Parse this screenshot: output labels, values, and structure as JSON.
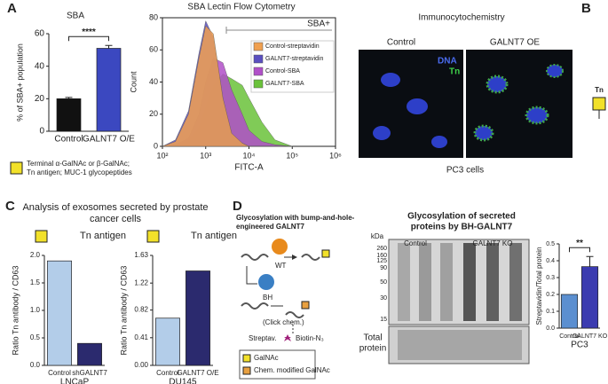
{
  "panels": {
    "labels": [
      "A",
      "B",
      "C",
      "D"
    ],
    "a_note_lines": [
      "Terminal α-GalNAc or β-GalNAc;",
      "Tn antigen; MUC-1 glycopeptides"
    ],
    "b": {
      "title": "Immunocytochemistry",
      "images": [
        "Control",
        "GALNT7 OE"
      ],
      "stains": [
        "DNA",
        "Tn"
      ],
      "caption": "PC3 cells",
      "glycan": "Tn"
    },
    "c": {
      "title_lines": [
        "Analysis of exosomes secreted by prostate",
        "cancer cells"
      ]
    },
    "d": {
      "title_lines": [
        "Glycosylation with bump-and-hole-",
        "engineered GALNT7"
      ],
      "enzymes": [
        "WT",
        "BH"
      ],
      "click": "(Click chem.)",
      "streptavidin": "Streptav.",
      "biotin": "Biotin-N₃",
      "key": [
        "GalNAc",
        "Chem. modified GalNAc"
      ],
      "blot": {
        "title_lines": [
          "Glycosylation of secreted",
          "proteins by BH-GALNT7"
        ],
        "unit": "kDa",
        "markers": [
          260,
          160,
          125,
          90,
          50,
          30,
          15
        ],
        "groups": [
          "Control",
          "GALNT7 KO"
        ],
        "total": [
          "Total",
          "protein"
        ]
      }
    }
  },
  "chart_data": [
    {
      "type": "bar",
      "title": "SBA",
      "ylabel": "% of SBA+ population",
      "categories": [
        "Control",
        "GALNT7 O/E"
      ],
      "values": [
        20,
        51
      ],
      "errors": [
        0.8,
        1.8
      ],
      "colors": [
        "#111111",
        "#3b48c0"
      ],
      "ylim": [
        0,
        60
      ],
      "yticks": [
        0,
        20,
        40,
        60
      ],
      "significance": "****"
    },
    {
      "type": "area",
      "title": "SBA Lectin Flow Cytometry",
      "xlabel": "FITC-A",
      "ylabel": "Count",
      "log_x": true,
      "gate_label": "SBA+",
      "xlim": [
        100,
        1000000
      ],
      "xticks": [
        {
          "value": 100,
          "label": "10²"
        },
        {
          "value": 1000,
          "label": "10³"
        },
        {
          "value": 10000,
          "label": "10⁴"
        },
        {
          "value": 100000,
          "label": "10⁵"
        },
        {
          "value": 1000000,
          "label": "10⁶"
        }
      ],
      "ylim": [
        0,
        80
      ],
      "yticks": [
        0,
        20,
        40,
        60,
        80
      ],
      "series": [
        {
          "name": "Control-streptavidin",
          "color": "#f0a050",
          "x": [
            100,
            200,
            400,
            700,
            1000,
            1500,
            2500,
            4000,
            7000,
            10000,
            20000,
            40000,
            100000
          ],
          "values": [
            0,
            3,
            20,
            55,
            75,
            70,
            30,
            8,
            2,
            0,
            0,
            0,
            0
          ]
        },
        {
          "name": "GALNT7-streptavidin",
          "color": "#5a4fc0",
          "x": [
            100,
            200,
            400,
            700,
            1000,
            1500,
            2500,
            4000,
            7000,
            10000,
            20000,
            40000,
            100000
          ],
          "values": [
            0,
            4,
            22,
            58,
            78,
            68,
            28,
            7,
            2,
            0,
            0,
            0,
            0
          ]
        },
        {
          "name": "Control-SBA",
          "color": "#b04fc8",
          "x": [
            100,
            200,
            400,
            700,
            1000,
            1500,
            2500,
            4000,
            7000,
            10000,
            20000,
            40000,
            100000
          ],
          "values": [
            0,
            1,
            5,
            20,
            40,
            55,
            52,
            35,
            20,
            10,
            3,
            1,
            0
          ]
        },
        {
          "name": "GALNT7-SBA",
          "color": "#6ac23a",
          "x": [
            100,
            200,
            400,
            700,
            1000,
            1500,
            2500,
            4000,
            7000,
            10000,
            20000,
            40000,
            100000
          ],
          "values": [
            0,
            1,
            4,
            12,
            25,
            38,
            45,
            42,
            38,
            30,
            15,
            4,
            0
          ]
        }
      ]
    },
    {
      "type": "bar",
      "title": "Tn antigen",
      "xlabel": "LNCaP",
      "ylabel": "Ratio Tn antibody / CD63",
      "categories": [
        "Control",
        "shGALNT7"
      ],
      "values": [
        1.9,
        0.4
      ],
      "colors": [
        "#b3cde9",
        "#2b2a6e"
      ],
      "ylim": [
        0,
        2
      ],
      "yticks": [
        {
          "value": 0,
          "label": "0.0"
        },
        {
          "value": 0.5,
          "label": "0.5"
        },
        {
          "value": 1,
          "label": "1.0"
        },
        {
          "value": 1.5,
          "label": "1.5"
        },
        {
          "value": 2,
          "label": "2.0"
        }
      ]
    },
    {
      "type": "bar",
      "title": "Tn antigen",
      "xlabel": "DU145",
      "ylabel": "Ratio Tn antibody / CD63",
      "categories": [
        "Control",
        "GALNT7 O/E"
      ],
      "values": [
        0.7,
        1.4
      ],
      "colors": [
        "#b3cde9",
        "#2b2a6e"
      ],
      "ylim": [
        0,
        1.63
      ],
      "yticks": [
        {
          "value": 0,
          "label": "0.00"
        },
        {
          "value": 0.41,
          "label": "0.41"
        },
        {
          "value": 0.82,
          "label": "0.82"
        },
        {
          "value": 1.22,
          "label": "1.22"
        },
        {
          "value": 1.63,
          "label": "1.63"
        }
      ]
    },
    {
      "type": "bar",
      "xlabel": "PC3",
      "ylabel": "Streptavidin/Total protein",
      "categories": [
        "Control",
        "GALNT7 KO"
      ],
      "values": [
        0.2,
        0.365
      ],
      "errors": [
        null,
        0.06
      ],
      "colors": [
        "#5b8fd0",
        "#3b3bb0"
      ],
      "ylim": [
        0,
        0.5
      ],
      "yticks": [
        {
          "value": 0,
          "label": "0.0"
        },
        {
          "value": 0.1,
          "label": "0.1"
        },
        {
          "value": 0.2,
          "label": "0.2"
        },
        {
          "value": 0.3,
          "label": "0.3"
        },
        {
          "value": 0.4,
          "label": "0.4"
        },
        {
          "value": 0.5,
          "label": "0.5"
        }
      ],
      "significance": "**"
    }
  ]
}
